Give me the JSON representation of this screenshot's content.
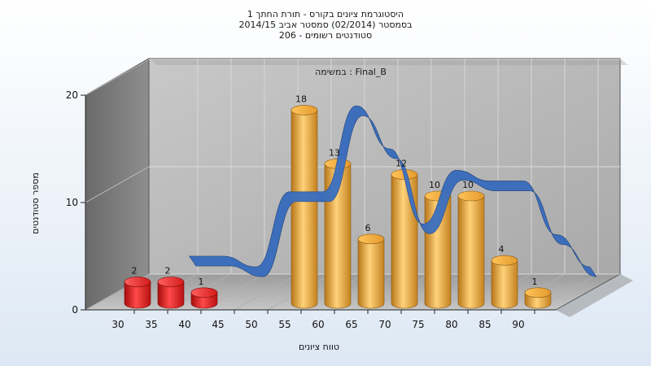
{
  "chart_data": {
    "type": "bar",
    "title_lines": [
      "היסטוגרמת ציונים בקורס - תורת החתך 1",
      "בסמסטר  (02/2014)  סמסטר אביב 2014/15",
      "סטודנטים רשומים - 206"
    ],
    "annotation": "במשימה : Final_B",
    "xlabel": "טווח ציונים",
    "ylabel": "מספר סטודנטים",
    "x_ticks": [
      "30",
      "35",
      "40",
      "45",
      "50",
      "55",
      "60",
      "65",
      "70",
      "75",
      "80",
      "85",
      "90"
    ],
    "y_ticks": [
      "0",
      "10",
      "20"
    ],
    "ylim": [
      0,
      20
    ],
    "grid": true,
    "bars": [
      {
        "bin": "30",
        "value": 2,
        "label": "2",
        "color": "#e01818"
      },
      {
        "bin": "35",
        "value": 2,
        "label": "2",
        "color": "#e01818"
      },
      {
        "bin": "40",
        "value": 1,
        "label": "1",
        "color": "#e01818"
      },
      {
        "bin": "55",
        "value": 18,
        "label": "18",
        "color": "#e8a030"
      },
      {
        "bin": "60",
        "value": 13,
        "label": "13",
        "color": "#e8a030"
      },
      {
        "bin": "65",
        "value": 6,
        "label": "6",
        "color": "#e8a030"
      },
      {
        "bin": "70",
        "value": 12,
        "label": "12",
        "color": "#e8a030"
      },
      {
        "bin": "75",
        "value": 10,
        "label": "10",
        "color": "#e8a030"
      },
      {
        "bin": "80",
        "value": 10,
        "label": "10",
        "color": "#e8a030"
      },
      {
        "bin": "85",
        "value": 4,
        "label": "4",
        "color": "#e8a030"
      },
      {
        "bin": "90",
        "value": 1,
        "label": "1",
        "color": "#e8a030"
      }
    ],
    "distribution_curve": {
      "x": [
        35,
        40,
        45,
        50,
        55,
        60,
        65,
        70,
        75,
        80,
        85,
        90,
        95
      ],
      "y": [
        3,
        3,
        2,
        9,
        9,
        17,
        13,
        6,
        11,
        10,
        10,
        5,
        2
      ]
    },
    "colors": {
      "fail_bar": "#e01818",
      "pass_bar": "#e8a030",
      "curve_front": "#3a6fc0",
      "curve_back": "#6b6b6b"
    }
  }
}
